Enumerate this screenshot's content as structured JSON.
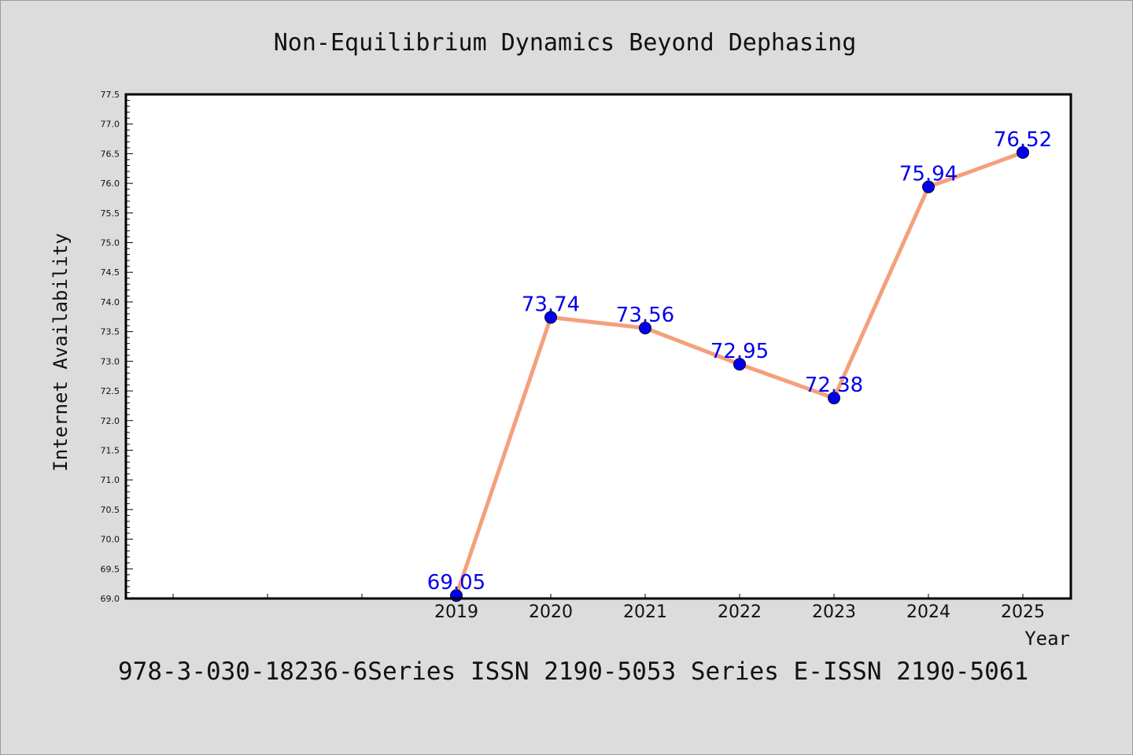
{
  "chart_data": {
    "type": "line",
    "title": "Non-Equilibrium Dynamics Beyond Dephasing",
    "xlabel": "Year",
    "ylabel": "Internet Availability",
    "categories": [
      "2019",
      "2020",
      "2021",
      "2022",
      "2023",
      "2024",
      "2025"
    ],
    "values": [
      69.05,
      73.74,
      73.56,
      72.95,
      72.38,
      75.94,
      76.52
    ],
    "value_labels": [
      "69.05",
      "73.74",
      "73.56",
      "72.95",
      "72.38",
      "75.94",
      "76.52"
    ],
    "x_ticks": [
      "",
      "",
      "",
      "2019",
      "2020",
      "2021",
      "2022",
      "2023",
      "2024",
      "2025"
    ],
    "ylim": [
      69.0,
      77.5
    ],
    "y_ticks": [
      "69.0",
      "69.5",
      "70.0",
      "70.5",
      "71.0",
      "71.5",
      "72.0",
      "72.5",
      "73.0",
      "73.5",
      "74.0",
      "74.5",
      "75.0",
      "75.5",
      "76.0",
      "76.5",
      "77.0",
      "77.5"
    ],
    "grid": false,
    "line_color": "#f4a07c",
    "marker_color": "#0000ee",
    "label_color": "#0000ee",
    "background_color": "#dcdcdc",
    "plot_background_color": "#ffffff"
  },
  "footer": "978-3-030-18236-6Series ISSN 2190-5053 Series E-ISSN 2190-5061"
}
